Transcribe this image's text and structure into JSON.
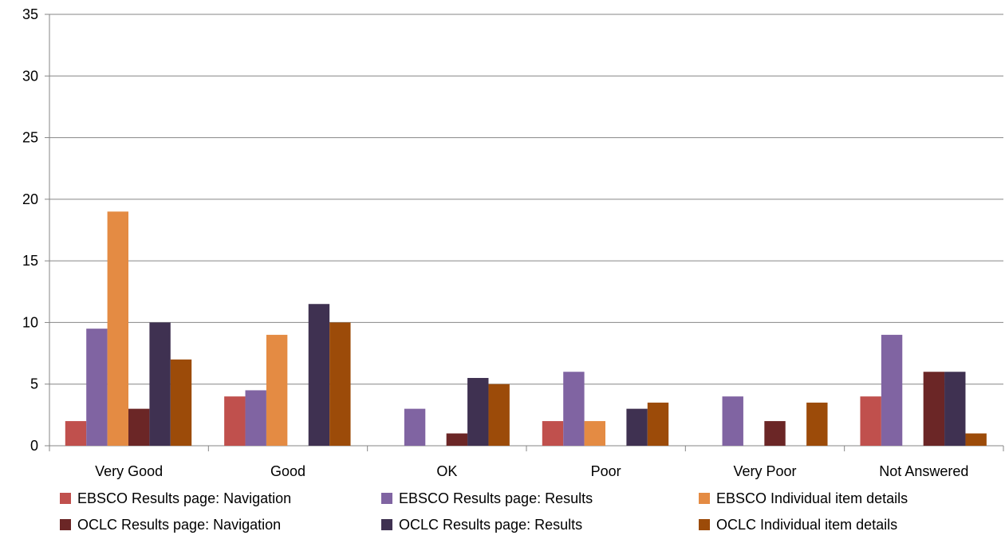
{
  "chart_data": {
    "type": "bar",
    "title": "",
    "xlabel": "",
    "ylabel": "",
    "ylim": [
      0,
      35
    ],
    "yticks": [
      0,
      5,
      10,
      15,
      20,
      25,
      30,
      35
    ],
    "grid": true,
    "legend_position": "bottom",
    "categories": [
      "Very Good",
      "Good",
      "OK",
      "Poor",
      "Very Poor",
      "Not Answered"
    ],
    "series": [
      {
        "name": "EBSCO Results page: Navigation",
        "color": "#c0504d",
        "values": [
          2,
          4,
          0,
          2,
          0,
          4
        ]
      },
      {
        "name": "EBSCO Results page: Results",
        "color": "#8064a2",
        "values": [
          9.5,
          4.5,
          3,
          6,
          4,
          9
        ]
      },
      {
        "name": "EBSCO Individual item details",
        "color": "#e48b43",
        "values": [
          19,
          9,
          0,
          2,
          0,
          0
        ]
      },
      {
        "name": "OCLC Results page: Navigation",
        "color": "#6b2626",
        "values": [
          3,
          0,
          1,
          0,
          2,
          6
        ]
      },
      {
        "name": "OCLC Results page: Results",
        "color": "#3f3151",
        "values": [
          10,
          11.5,
          5.5,
          3,
          0,
          6
        ]
      },
      {
        "name": "OCLC Individual item details",
        "color": "#9c4b09",
        "values": [
          7,
          10,
          5,
          3.5,
          3.5,
          1
        ]
      }
    ]
  }
}
